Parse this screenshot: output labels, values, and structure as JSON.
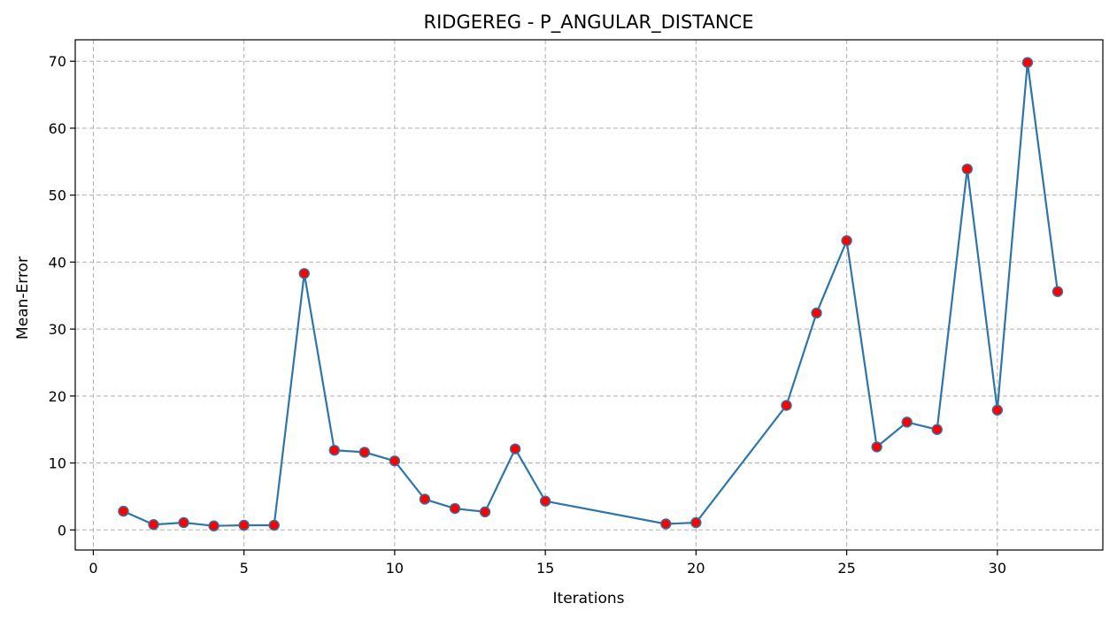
{
  "chart_data": {
    "type": "line",
    "title": "RIDGEREG - P_ANGULAR_DISTANCE",
    "xlabel": "Iterations",
    "ylabel": "Mean-Error",
    "xlim": [
      -0.6,
      33.5
    ],
    "ylim": [
      -3,
      73.2
    ],
    "xticks": [
      0,
      5,
      10,
      15,
      20,
      25,
      30
    ],
    "yticks": [
      0,
      10,
      20,
      30,
      40,
      50,
      60,
      70
    ],
    "grid": true,
    "series": [
      {
        "x": [
          1,
          2,
          3,
          4,
          5,
          6,
          7,
          8,
          9,
          10,
          11,
          12,
          13,
          14,
          15,
          19,
          20,
          23,
          24,
          25,
          26,
          27,
          28,
          29,
          30,
          31,
          32
        ],
        "values": [
          2.8,
          0.8,
          1.1,
          0.6,
          0.7,
          0.7,
          38.3,
          11.9,
          11.6,
          10.3,
          4.6,
          3.2,
          2.7,
          12.1,
          4.3,
          0.9,
          1.1,
          18.6,
          32.4,
          43.2,
          12.4,
          16.1,
          15.0,
          53.9,
          17.9,
          69.8,
          35.6
        ],
        "line_color": "#2e75aa",
        "marker_face": "#ff0000",
        "marker_edge": "#2e75aa"
      }
    ]
  }
}
